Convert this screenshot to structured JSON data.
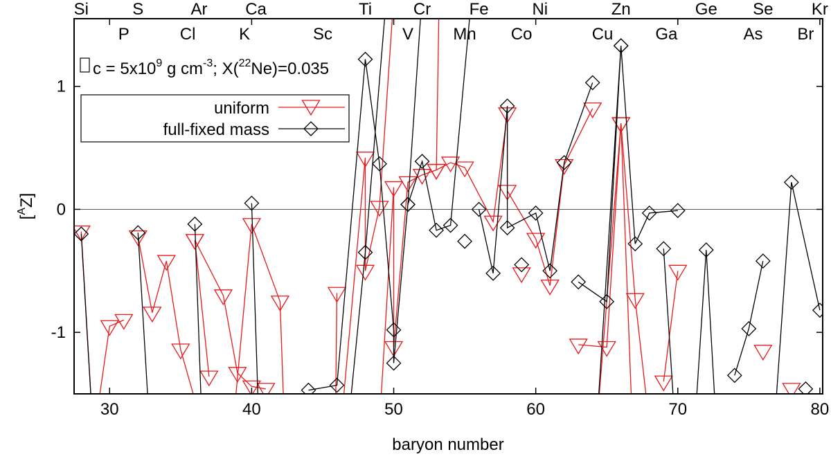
{
  "chart_data": {
    "type": "line",
    "xlabel": "baryon number",
    "ylabel": "[^AZ]",
    "xlim": [
      27.5,
      80.2
    ],
    "ylim": [
      -1.5,
      1.55
    ],
    "xticks": [
      30,
      40,
      50,
      60,
      70,
      80
    ],
    "yticks": [
      -1,
      0,
      1
    ],
    "grid": false,
    "zero_line": true,
    "legend_position": "top-left",
    "annotation": "□c = 5x10^9 g cm^-3; X(^22Ne)=0.035",
    "element_labels_top": [
      {
        "symbol": "Si",
        "x": 28
      },
      {
        "symbol": "S",
        "x": 32
      },
      {
        "symbol": "Ar",
        "x": 36.3
      },
      {
        "symbol": "Ca",
        "x": 40.3
      },
      {
        "symbol": "Ti",
        "x": 48
      },
      {
        "symbol": "Cr",
        "x": 52
      },
      {
        "symbol": "Fe",
        "x": 56
      },
      {
        "symbol": "Ni",
        "x": 60.3
      },
      {
        "symbol": "Zn",
        "x": 66
      },
      {
        "symbol": "Ge",
        "x": 72
      },
      {
        "symbol": "Se",
        "x": 76
      },
      {
        "symbol": "Kr",
        "x": 80
      }
    ],
    "element_labels_bottom": [
      {
        "symbol": "P",
        "x": 31
      },
      {
        "symbol": "Cl",
        "x": 35.5
      },
      {
        "symbol": "K",
        "x": 39.5
      },
      {
        "symbol": "Sc",
        "x": 45
      },
      {
        "symbol": "V",
        "x": 51
      },
      {
        "symbol": "Mn",
        "x": 55
      },
      {
        "symbol": "Co",
        "x": 59
      },
      {
        "symbol": "Cu",
        "x": 64.7
      },
      {
        "symbol": "Ga",
        "x": 69.2
      },
      {
        "symbol": "As",
        "x": 75.3
      },
      {
        "symbol": "Br",
        "x": 79
      }
    ],
    "series": [
      {
        "name": "uniform",
        "color": "#e8191c",
        "marker": "triangle-down",
        "segments": [
          [
            [
              28,
              -0.18
            ],
            [
              28.8,
              -1.75
            ]
          ],
          [
            [
              29,
              -1.75
            ],
            [
              30,
              -0.95
            ],
            [
              31,
              -0.9
            ]
          ],
          [
            [
              32,
              -0.22
            ],
            [
              33,
              -0.84
            ],
            [
              34,
              -0.42
            ],
            [
              35,
              -1.14
            ],
            [
              36.5,
              -1.75
            ]
          ],
          [
            [
              36,
              -0.25
            ],
            [
              37,
              -1.36
            ]
          ],
          [
            [
              36,
              -0.25
            ],
            [
              38,
              -0.7
            ],
            [
              39,
              -1.33
            ],
            [
              40,
              -1.44
            ],
            [
              41,
              -1.46
            ]
          ],
          [
            [
              38.7,
              -1.75
            ],
            [
              40,
              -0.12
            ],
            [
              42,
              -0.75
            ],
            [
              42.3,
              -1.75
            ]
          ],
          [
            [
              45.9,
              -1.75
            ],
            [
              46,
              -0.68
            ]
          ],
          [
            [
              46.3,
              -1.75
            ],
            [
              48,
              0.42
            ],
            [
              48,
              -0.5
            ],
            [
              49,
              0.02
            ],
            [
              50,
              1.72
            ]
          ],
          [
            [
              49,
              -1.75
            ],
            [
              50,
              0.18
            ],
            [
              50,
              -1.12
            ],
            [
              51,
              0.22
            ],
            [
              52,
              0.28
            ],
            [
              53,
              0.32
            ],
            [
              53.2,
              1.75
            ]
          ],
          [
            [
              53,
              0.32
            ],
            [
              54,
              0.38
            ],
            [
              55,
              0.34
            ],
            [
              57,
              -0.1
            ],
            [
              58,
              0.78
            ],
            [
              58,
              0.15
            ],
            [
              60,
              -0.24
            ],
            [
              61,
              -0.62
            ],
            [
              62,
              0.36
            ],
            [
              64,
              0.82
            ]
          ],
          [
            [
              59,
              -0.52
            ]
          ],
          [
            [
              63,
              -1.1
            ],
            [
              65,
              -1.12
            ],
            [
              66,
              0.7
            ],
            [
              67,
              -0.73
            ],
            [
              68,
              -1.75
            ]
          ],
          [
            [
              64.3,
              -1.75
            ],
            [
              66,
              0.7
            ],
            [
              66.8,
              -1.75
            ]
          ],
          [
            [
              69,
              -1.4
            ],
            [
              70,
              -0.5
            ]
          ],
          [
            [
              76,
              -1.15
            ]
          ],
          [
            [
              78,
              -1.46
            ]
          ]
        ]
      },
      {
        "name": "full-fixed mass",
        "color": "#000000",
        "marker": "diamond",
        "segments": [
          [
            [
              28,
              -0.2
            ],
            [
              28.8,
              -1.75
            ]
          ],
          [
            [
              32,
              -0.19
            ],
            [
              32.8,
              -1.75
            ]
          ],
          [
            [
              36,
              -0.12
            ],
            [
              36.5,
              -1.75
            ]
          ],
          [
            [
              40,
              0.05
            ],
            [
              40.5,
              -1.75
            ]
          ],
          [
            [
              44,
              -1.47
            ],
            [
              46,
              -1.43
            ],
            [
              48,
              1.22
            ],
            [
              49,
              0.37
            ],
            [
              50,
              -0.98
            ],
            [
              50,
              -1.25
            ],
            [
              51,
              0.04
            ],
            [
              52,
              0.39
            ],
            [
              53,
              -0.17
            ],
            [
              54,
              -0.13
            ],
            [
              55.5,
              1.75
            ]
          ],
          [
            [
              46.8,
              -1.75
            ],
            [
              48,
              -0.35
            ],
            [
              49.5,
              1.75
            ]
          ],
          [
            [
              51,
              0.04
            ],
            [
              52,
              1.75
            ]
          ],
          [
            [
              55,
              -0.26
            ]
          ],
          [
            [
              56,
              0.0
            ],
            [
              57,
              -0.52
            ],
            [
              58,
              0.84
            ],
            [
              58,
              -0.15
            ],
            [
              60,
              -0.03
            ],
            [
              61,
              -0.5
            ],
            [
              62,
              0.38
            ],
            [
              64,
              1.03
            ]
          ],
          [
            [
              59,
              -0.45
            ]
          ],
          [
            [
              63,
              -0.59
            ],
            [
              65,
              -0.75
            ],
            [
              66,
              1.33
            ],
            [
              67,
              -0.28
            ],
            [
              68,
              -0.03
            ],
            [
              70,
              -0.01
            ]
          ],
          [
            [
              64.3,
              -1.75
            ],
            [
              66,
              1.33
            ]
          ],
          [
            [
              69,
              -0.32
            ],
            [
              69.8,
              -1.75
            ]
          ],
          [
            [
              71.2,
              -1.75
            ],
            [
              72,
              -0.33
            ],
            [
              72.7,
              -1.75
            ]
          ],
          [
            [
              74,
              -1.35
            ],
            [
              75,
              -0.97
            ],
            [
              76,
              -0.42
            ]
          ],
          [
            [
              76.8,
              -1.75
            ],
            [
              78,
              0.22
            ],
            [
              80,
              -0.82
            ]
          ],
          [
            [
              79,
              -1.46
            ]
          ]
        ]
      }
    ]
  }
}
